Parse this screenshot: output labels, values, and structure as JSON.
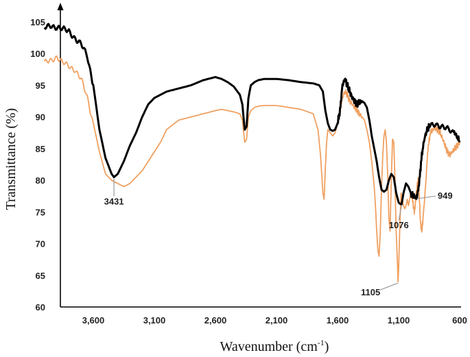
{
  "chart_data": {
    "type": "line",
    "title": "",
    "xlabel": "Wavenumber (cm",
    "xlabel_sup": "-1",
    "xlabel_close": ")",
    "ylabel": "Transmittance (%)",
    "xlim": [
      4000,
      600
    ],
    "x_reversed": true,
    "ylim": [
      60,
      107
    ],
    "x_ticks": [
      3600,
      3100,
      2600,
      2100,
      1600,
      1100,
      600
    ],
    "x_tick_labels": [
      "3,600",
      "3,100",
      "2,600",
      "2,100",
      "1,600",
      "1,100",
      "600"
    ],
    "y_ticks": [
      60,
      65,
      70,
      75,
      80,
      85,
      90,
      95,
      100,
      105
    ],
    "y_tick_labels": [
      "60",
      "65",
      "70",
      "75",
      "80",
      "85",
      "90",
      "95",
      "100",
      "105"
    ],
    "grid": false,
    "legend": "none",
    "series": [
      {
        "color": "#000000",
        "x": [
          4000,
          3950,
          3900,
          3850,
          3800,
          3750,
          3700,
          3650,
          3600,
          3550,
          3500,
          3450,
          3431,
          3400,
          3350,
          3300,
          3250,
          3200,
          3150,
          3100,
          3050,
          3000,
          2900,
          2800,
          2700,
          2600,
          2550,
          2500,
          2450,
          2400,
          2380,
          2360,
          2345,
          2330,
          2310,
          2280,
          2250,
          2200,
          2150,
          2100,
          2000,
          1900,
          1800,
          1750,
          1720,
          1700,
          1680,
          1660,
          1640,
          1620,
          1600,
          1580,
          1560,
          1540,
          1520,
          1500,
          1480,
          1460,
          1440,
          1420,
          1400,
          1380,
          1360,
          1340,
          1320,
          1300,
          1280,
          1260,
          1240,
          1220,
          1200,
          1180,
          1160,
          1140,
          1120,
          1100,
          1090,
          1076,
          1060,
          1040,
          1020,
          1000,
          980,
          960,
          949,
          930,
          910,
          890,
          870,
          850,
          800,
          750,
          700,
          650,
          620,
          600
        ],
        "y": [
          104,
          104.5,
          104.2,
          103.8,
          103.5,
          102.5,
          101.5,
          99.5,
          95,
          88,
          83.5,
          81,
          80.5,
          81,
          83,
          85.5,
          87.5,
          90,
          92,
          93,
          93.5,
          94,
          94.5,
          95,
          95.8,
          96.3,
          96,
          95.5,
          94.8,
          93.5,
          92,
          88,
          88.5,
          93,
          95,
          95.5,
          95.8,
          96,
          96,
          96,
          95.8,
          95.5,
          95.3,
          95,
          94,
          91,
          89,
          88,
          87.8,
          88,
          89,
          91,
          95,
          96,
          95,
          94,
          93,
          92.5,
          92,
          92.3,
          92.5,
          92.2,
          91.5,
          89.5,
          87,
          85,
          83,
          80.5,
          78.5,
          78.2,
          78.5,
          80,
          81,
          80.5,
          78,
          76.5,
          76.3,
          76.2,
          78,
          79.5,
          79,
          78,
          77.5,
          77.3,
          77.3,
          80,
          84,
          86.5,
          87.8,
          88.5,
          89,
          88.5,
          88,
          87.5,
          87,
          86
        ]
      },
      {
        "color": "#F0A060",
        "x": [
          4000,
          3950,
          3900,
          3850,
          3800,
          3750,
          3700,
          3650,
          3600,
          3550,
          3500,
          3450,
          3400,
          3350,
          3300,
          3250,
          3200,
          3150,
          3100,
          3050,
          3000,
          2900,
          2800,
          2700,
          2600,
          2550,
          2500,
          2450,
          2400,
          2380,
          2360,
          2345,
          2330,
          2310,
          2280,
          2250,
          2200,
          2150,
          2100,
          2000,
          1900,
          1800,
          1760,
          1740,
          1720,
          1710,
          1700,
          1690,
          1680,
          1660,
          1640,
          1620,
          1600,
          1580,
          1560,
          1540,
          1520,
          1500,
          1480,
          1460,
          1440,
          1420,
          1400,
          1380,
          1360,
          1340,
          1320,
          1300,
          1290,
          1280,
          1270,
          1260,
          1250,
          1240,
          1230,
          1220,
          1210,
          1200,
          1190,
          1180,
          1170,
          1160,
          1150,
          1140,
          1130,
          1120,
          1110,
          1105,
          1100,
          1090,
          1080,
          1070,
          1060,
          1050,
          1040,
          1030,
          1020,
          1010,
          1000,
          990,
          980,
          970,
          960,
          950,
          940,
          930,
          920,
          910,
          900,
          880,
          860,
          840,
          820,
          800,
          780,
          760,
          740,
          720,
          700,
          680,
          660,
          640,
          620,
          600
        ],
        "y": [
          98.5,
          99,
          99.5,
          98.5,
          98,
          97.5,
          96,
          93,
          89,
          84.5,
          81,
          80,
          79.5,
          79,
          79.5,
          80.5,
          81.5,
          83,
          84.5,
          86,
          88,
          89.5,
          90,
          90.5,
          91,
          91.2,
          91,
          90.8,
          90.5,
          89.5,
          86,
          86.5,
          90,
          91,
          91.5,
          91.7,
          91.8,
          91.8,
          91.8,
          91.5,
          91.2,
          90.5,
          88,
          84,
          78,
          77,
          82,
          86,
          88,
          87.5,
          87,
          87.5,
          89,
          91,
          93,
          94,
          93.5,
          92.5,
          92,
          91.5,
          91,
          90.5,
          90,
          89.5,
          88,
          86,
          83,
          79,
          76,
          72,
          69,
          68,
          72,
          79,
          84,
          87,
          88,
          86,
          81,
          74,
          72,
          80,
          86.5,
          86,
          80,
          72,
          67,
          64,
          66,
          73,
          78,
          77,
          76,
          75.5,
          76,
          77,
          76,
          77,
          78,
          77.5,
          76,
          75,
          77,
          79,
          80,
          77,
          73,
          72,
          74,
          79,
          85,
          87.5,
          88,
          88.2,
          88,
          87.5,
          86.5,
          85.5,
          84.5,
          84,
          84.5,
          85,
          85.5,
          86
        ]
      }
    ],
    "annotations": [
      {
        "text": "3431",
        "x": 3431,
        "y": 80.5
      },
      {
        "text": "1105",
        "x": 1105,
        "y": 64
      },
      {
        "text": "1076",
        "x": 1076,
        "y": 76.2
      },
      {
        "text": "949",
        "x": 949,
        "y": 77.3
      }
    ]
  }
}
